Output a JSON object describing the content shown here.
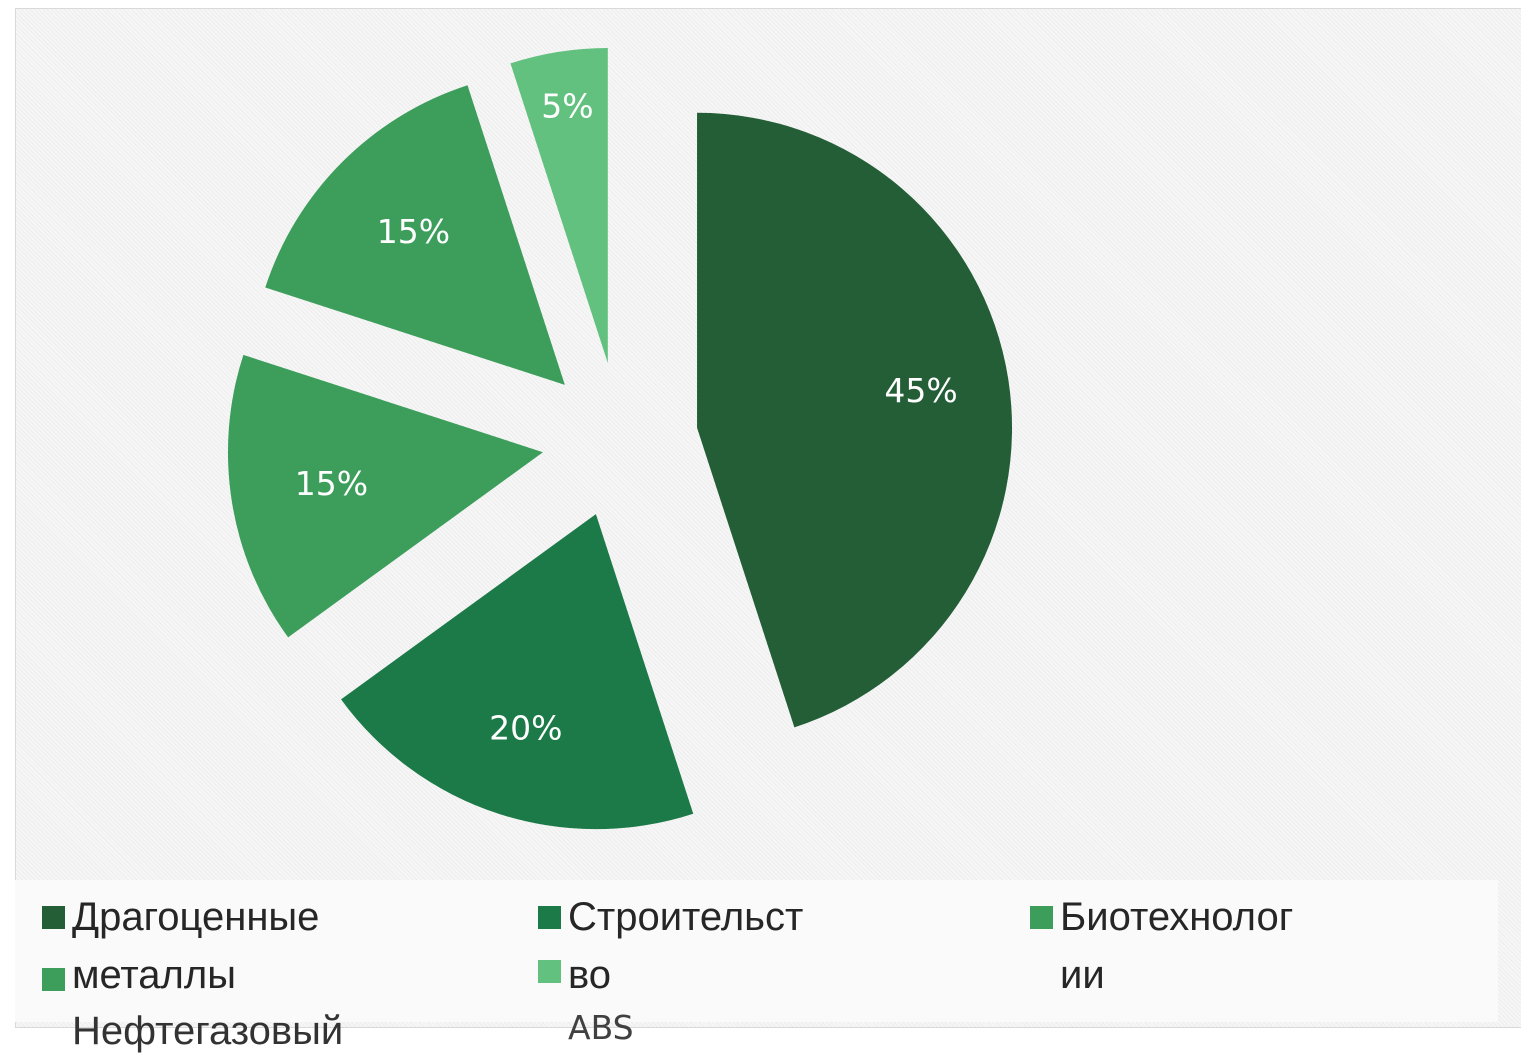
{
  "chart_data": {
    "type": "pie",
    "exploded": true,
    "data_labels": "percent",
    "start_angle_deg": 0,
    "direction": "clockwise",
    "legend_position": "bottom",
    "series": [
      {
        "values": [
          45,
          20,
          15,
          15,
          5
        ],
        "labels": [
          "45%",
          "20%",
          "15%",
          "15%",
          "5%"
        ],
        "colors": [
          "#245e37",
          "#1b7a48",
          "#3d9e5c",
          "#3d9e5c",
          "#62c17e"
        ]
      }
    ],
    "legend": [
      {
        "label": "Драгоценные\nметаллы",
        "color": "#245e37"
      },
      {
        "label": "Строительст\nво",
        "color": "#1b7a48"
      },
      {
        "label": "Биотехнолог\nии",
        "color": "#3d9e5c"
      },
      {
        "label": "Нефтегазовый",
        "color": "#3d9e5c"
      },
      {
        "label": "ABS",
        "color": "#62c17e"
      }
    ]
  }
}
